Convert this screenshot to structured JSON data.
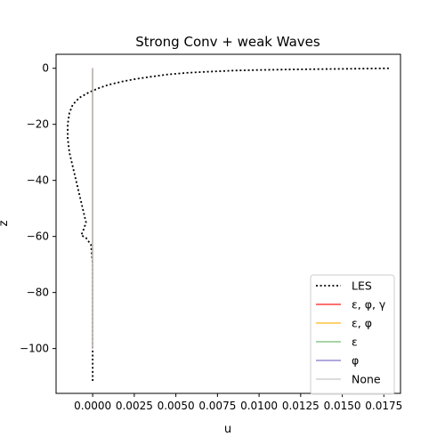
{
  "chart_data": {
    "type": "line",
    "title": "Strong Conv + weak Waves",
    "xlabel": "u",
    "ylabel": "z",
    "xlim": [
      -0.0022,
      0.0185
    ],
    "ylim": [
      -116,
      5
    ],
    "xticks": [
      0.0,
      0.0025,
      0.005,
      0.0075,
      0.01,
      0.0125,
      0.015,
      0.0175
    ],
    "xtick_labels": [
      "0.0000",
      "0.0025",
      "0.0050",
      "0.0075",
      "0.0100",
      "0.0125",
      "0.0150",
      "0.0175"
    ],
    "yticks": [
      0,
      -20,
      -40,
      -60,
      -80,
      -100
    ],
    "ytick_labels": [
      "0",
      "−20",
      "−40",
      "−60",
      "−80",
      "−100"
    ],
    "grid": false,
    "legend_position": "lower right",
    "series": [
      {
        "name": "LES",
        "color": "#000000",
        "style": "dotted",
        "points": [
          [
            0.0178,
            0.0
          ],
          [
            0.015,
            -0.2
          ],
          [
            0.012,
            -0.4
          ],
          [
            0.01,
            -0.6
          ],
          [
            0.0085,
            -0.8
          ],
          [
            0.007,
            -1.2
          ],
          [
            0.0057,
            -1.6
          ],
          [
            0.0045,
            -2.2
          ],
          [
            0.0035,
            -3.0
          ],
          [
            0.0026,
            -3.8
          ],
          [
            0.0018,
            -4.7
          ],
          [
            0.001,
            -5.8
          ],
          [
            0.0004,
            -7.0
          ],
          [
            -0.0002,
            -8.5
          ],
          [
            -0.0008,
            -10.5
          ],
          [
            -0.0012,
            -13.0
          ],
          [
            -0.0014,
            -16.0
          ],
          [
            -0.0015,
            -20.0
          ],
          [
            -0.0015,
            -25.0
          ],
          [
            -0.0014,
            -30.0
          ],
          [
            -0.0012,
            -35.0
          ],
          [
            -0.001,
            -40.0
          ],
          [
            -0.0008,
            -45.0
          ],
          [
            -0.0006,
            -50.0
          ],
          [
            -0.0004,
            -55.0
          ],
          [
            -0.0006,
            -58.5
          ],
          [
            -0.0007,
            -59.5
          ],
          [
            -0.0004,
            -60.5
          ],
          [
            -0.0001,
            -63.0
          ],
          [
            0.0,
            -70.0
          ],
          [
            0.0,
            -85.0
          ],
          [
            0.0,
            -100.0
          ],
          [
            0.0,
            -112.0
          ]
        ]
      },
      {
        "name": "ε, φ, γ",
        "color": "#ff0000",
        "style": "solid",
        "points": [
          [
            0.0,
            0.0
          ],
          [
            0.0,
            -100.0
          ]
        ]
      },
      {
        "name": "ε, φ",
        "color": "#ffb000",
        "style": "solid",
        "points": [
          [
            0.0,
            0.0
          ],
          [
            0.0,
            -100.0
          ]
        ]
      },
      {
        "name": "ε",
        "color": "#66b266",
        "style": "solid",
        "points": [
          [
            0.0,
            0.0
          ],
          [
            0.0,
            -100.0
          ]
        ]
      },
      {
        "name": "φ",
        "color": "#6f64c0",
        "style": "solid",
        "points": [
          [
            0.0,
            0.0
          ],
          [
            0.0,
            -100.0
          ]
        ]
      },
      {
        "name": "None",
        "color": "#d0d0d0",
        "style": "solid",
        "points": [
          [
            0.0,
            0.0
          ],
          [
            0.0,
            -100.0
          ]
        ]
      }
    ]
  }
}
